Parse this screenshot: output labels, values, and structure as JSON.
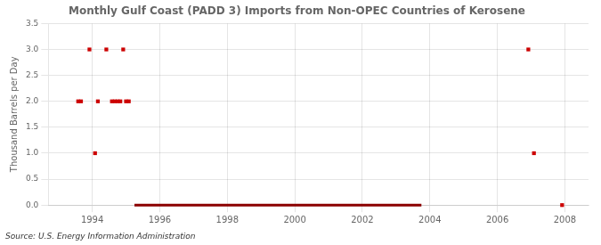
{
  "chart_data": {
    "type": "scatter",
    "title": "Monthly Gulf Coast (PADD 3) Imports from Non-OPEC Countries of Kerosene",
    "ylabel": "Thousand Barrels per Day",
    "annotation": "Source: U.S. Energy Information Administration",
    "xlim": [
      1992.7,
      2008.7
    ],
    "xticks": [
      1994,
      1996,
      1998,
      2000,
      2002,
      2004,
      2006,
      2008
    ],
    "ylim": [
      0.0,
      3.5
    ],
    "yticks": [
      {
        "value": 0.0,
        "label": "0.0"
      },
      0.5,
      {
        "value": 1.0,
        "label": "1.0"
      },
      1.5,
      {
        "value": 2.0,
        "label": "2.0"
      },
      2.5,
      {
        "value": 3.0,
        "label": "3.0"
      },
      3.5
    ],
    "grid": true,
    "series": [
      {
        "type": "scatter",
        "marker": "square",
        "color": "#cc0000",
        "x": [
          1993.583,
          1993.667,
          1993.917,
          1994.083,
          1994.167,
          1994.417,
          1994.583,
          1994.667,
          1994.75,
          1994.833,
          1994.917,
          1995.0,
          1995.083,
          2006.917,
          2007.083
        ],
        "values": [
          2.0,
          2.0,
          3.0,
          1.0,
          2.0,
          3.0,
          2.0,
          2.0,
          2.0,
          2.0,
          3.0,
          2.0,
          2.0,
          3.0,
          1.0
        ]
      },
      {
        "type": "line",
        "line_style": "solid",
        "color": "#8b0000",
        "x": [
          1995.25,
          2003.75
        ],
        "values": [
          0.0,
          0.0
        ]
      },
      {
        "type": "scatter",
        "marker": "square",
        "color": "#cc0000",
        "x": [
          2007.917
        ],
        "values": [
          0.0
        ]
      }
    ]
  }
}
